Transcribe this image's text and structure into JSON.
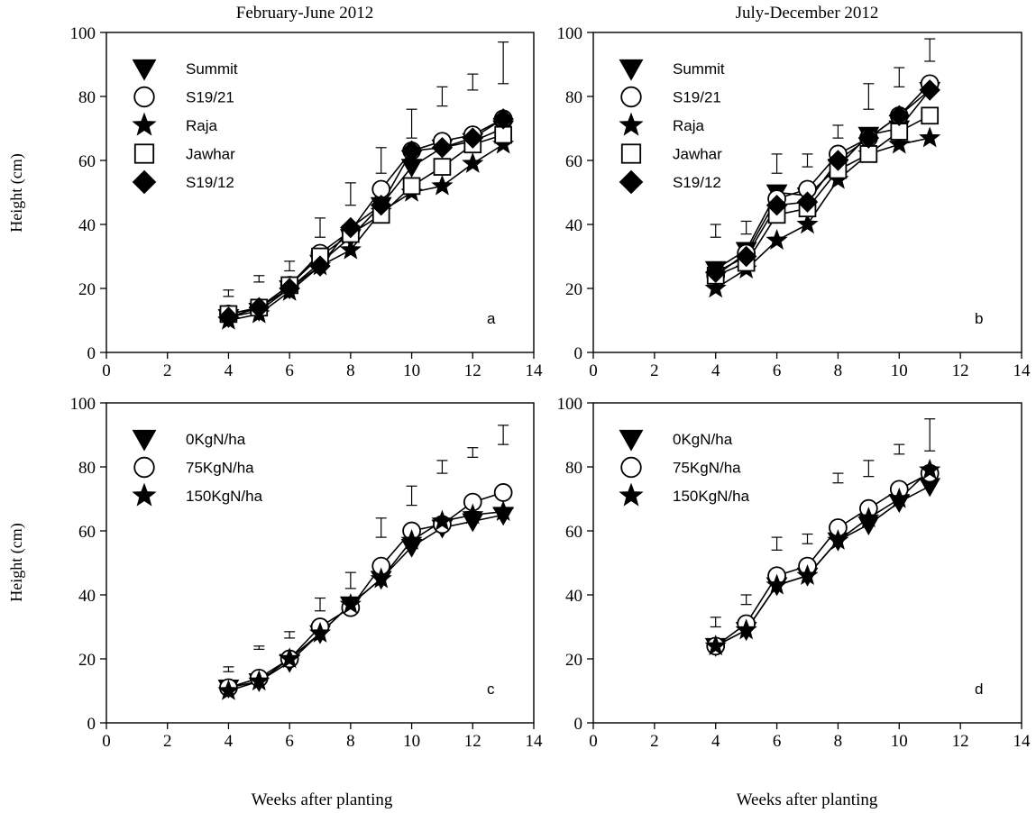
{
  "figure": {
    "column_titles": [
      "February-June 2012",
      "July-December 2012"
    ],
    "ylabel": "Height (cm)",
    "xlabel": "Weeks after planting"
  },
  "chart_data": [
    {
      "type": "line",
      "panel_label": "a",
      "title": "February-June 2012",
      "xlim": [
        0,
        14
      ],
      "ylim": [
        0,
        100
      ],
      "x_ticks": [
        0,
        2,
        4,
        6,
        8,
        10,
        12,
        14
      ],
      "y_ticks": [
        0,
        20,
        40,
        60,
        80,
        100
      ],
      "x": [
        4,
        5,
        6,
        7,
        8,
        9,
        10,
        11,
        12,
        13
      ],
      "legend_position": "top-left",
      "series": [
        {
          "name": "Summit",
          "marker": "triangle-down",
          "values": [
            11,
            13,
            20,
            28,
            36,
            46,
            58,
            64,
            66,
            70
          ]
        },
        {
          "name": "S19/21",
          "marker": "circle-open",
          "values": [
            12,
            14,
            21,
            31,
            38,
            51,
            63,
            66,
            68,
            73
          ]
        },
        {
          "name": "Raja",
          "marker": "star",
          "values": [
            10,
            12,
            19,
            27,
            32,
            44,
            50,
            52,
            59,
            65
          ]
        },
        {
          "name": "Jawhar",
          "marker": "square-open",
          "values": [
            12,
            14,
            21,
            30,
            37,
            43,
            52,
            58,
            65,
            68
          ]
        },
        {
          "name": "S19/12",
          "marker": "diamond",
          "values": [
            11,
            14,
            20,
            27,
            39,
            46,
            63,
            64,
            67,
            73
          ]
        }
      ],
      "error_bars": [
        {
          "x": 4,
          "low": 17.5,
          "high": 19.5
        },
        {
          "x": 5,
          "low": 22,
          "high": 24
        },
        {
          "x": 6,
          "low": 25.5,
          "high": 28.5
        },
        {
          "x": 7,
          "low": 36,
          "high": 42
        },
        {
          "x": 8,
          "low": 46,
          "high": 53
        },
        {
          "x": 9,
          "low": 56,
          "high": 64
        },
        {
          "x": 10,
          "low": 67,
          "high": 76
        },
        {
          "x": 11,
          "low": 77,
          "high": 83
        },
        {
          "x": 12,
          "low": 82,
          "high": 87
        },
        {
          "x": 13,
          "low": 84,
          "high": 97
        }
      ]
    },
    {
      "type": "line",
      "panel_label": "b",
      "title": "July-December 2012",
      "xlim": [
        0,
        14
      ],
      "ylim": [
        0,
        100
      ],
      "x_ticks": [
        0,
        2,
        4,
        6,
        8,
        10,
        12,
        14
      ],
      "y_ticks": [
        0,
        20,
        40,
        60,
        80,
        100
      ],
      "x": [
        4,
        5,
        6,
        7,
        8,
        9,
        10,
        11
      ],
      "legend_position": "top-left",
      "series": [
        {
          "name": "Summit",
          "marker": "triangle-down",
          "values": [
            26,
            32,
            50,
            49,
            58,
            68,
            70,
            82
          ]
        },
        {
          "name": "S19/21",
          "marker": "circle-open",
          "values": [
            24,
            31,
            48,
            51,
            62,
            67,
            74,
            84
          ]
        },
        {
          "name": "Raja",
          "marker": "star",
          "values": [
            20,
            26,
            35,
            40,
            54,
            62,
            65,
            67
          ]
        },
        {
          "name": "Jawhar",
          "marker": "square-open",
          "values": [
            24,
            28,
            43,
            45,
            57,
            62,
            69,
            74
          ]
        },
        {
          "name": "S19/12",
          "marker": "diamond",
          "values": [
            25,
            30,
            46,
            47,
            60,
            67,
            74,
            82
          ]
        }
      ],
      "error_bars": [
        {
          "x": 4,
          "low": 36,
          "high": 40
        },
        {
          "x": 5,
          "low": 37,
          "high": 41
        },
        {
          "x": 6,
          "low": 56,
          "high": 62
        },
        {
          "x": 7,
          "low": 58,
          "high": 62
        },
        {
          "x": 8,
          "low": 67,
          "high": 71
        },
        {
          "x": 9,
          "low": 76,
          "high": 84
        },
        {
          "x": 10,
          "low": 83,
          "high": 89
        },
        {
          "x": 11,
          "low": 91,
          "high": 98
        }
      ]
    },
    {
      "type": "line",
      "panel_label": "c",
      "title": "",
      "xlim": [
        0,
        14
      ],
      "ylim": [
        0,
        100
      ],
      "x_ticks": [
        0,
        2,
        4,
        6,
        8,
        10,
        12,
        14
      ],
      "y_ticks": [
        0,
        20,
        40,
        60,
        80,
        100
      ],
      "x": [
        4,
        5,
        6,
        7,
        8,
        9,
        10,
        11,
        12,
        13
      ],
      "legend_position": "top-left",
      "series": [
        {
          "name": "0KgN/ha",
          "marker": "triangle-down",
          "values": [
            11,
            13,
            19,
            28,
            37,
            45,
            55,
            61,
            63,
            65
          ]
        },
        {
          "name": "75KgN/ha",
          "marker": "circle-open",
          "values": [
            11,
            14,
            20,
            30,
            36,
            49,
            60,
            62,
            69,
            72
          ]
        },
        {
          "name": "150KgN/ha",
          "marker": "star",
          "values": [
            10,
            13,
            20,
            28,
            37,
            45,
            57,
            63,
            65,
            66
          ]
        }
      ],
      "error_bars": [
        {
          "x": 4,
          "low": 16,
          "high": 17.5
        },
        {
          "x": 5,
          "low": 23,
          "high": 24
        },
        {
          "x": 6,
          "low": 26.5,
          "high": 28.5
        },
        {
          "x": 7,
          "low": 35,
          "high": 39
        },
        {
          "x": 8,
          "low": 42,
          "high": 47
        },
        {
          "x": 9,
          "low": 58,
          "high": 64
        },
        {
          "x": 10,
          "low": 68,
          "high": 74
        },
        {
          "x": 11,
          "low": 78,
          "high": 82
        },
        {
          "x": 12,
          "low": 83,
          "high": 86
        },
        {
          "x": 13,
          "low": 87,
          "high": 93
        }
      ]
    },
    {
      "type": "line",
      "panel_label": "d",
      "title": "",
      "xlim": [
        0,
        14
      ],
      "ylim": [
        0,
        100
      ],
      "x_ticks": [
        0,
        2,
        4,
        6,
        8,
        10,
        12,
        14
      ],
      "y_ticks": [
        0,
        20,
        40,
        60,
        80,
        100
      ],
      "x": [
        4,
        5,
        6,
        7,
        8,
        9,
        10,
        11
      ],
      "legend_position": "top-left",
      "series": [
        {
          "name": "0KgN/ha",
          "marker": "triangle-down",
          "values": [
            24,
            29,
            43,
            46,
            57,
            62,
            69,
            74
          ]
        },
        {
          "name": "75KgN/ha",
          "marker": "circle-open",
          "values": [
            24,
            31,
            46,
            49,
            61,
            67,
            73,
            78
          ]
        },
        {
          "name": "150KgN/ha",
          "marker": "star",
          "values": [
            24,
            29,
            43,
            46,
            57,
            64,
            70,
            79
          ]
        }
      ],
      "error_bars": [
        {
          "x": 4,
          "low": 30,
          "high": 33
        },
        {
          "x": 5,
          "low": 37,
          "high": 40
        },
        {
          "x": 6,
          "low": 54,
          "high": 58
        },
        {
          "x": 7,
          "low": 56,
          "high": 59
        },
        {
          "x": 8,
          "low": 75,
          "high": 78
        },
        {
          "x": 9,
          "low": 77,
          "high": 82
        },
        {
          "x": 10,
          "low": 84,
          "high": 87
        },
        {
          "x": 11,
          "low": 85,
          "high": 95
        }
      ]
    }
  ]
}
